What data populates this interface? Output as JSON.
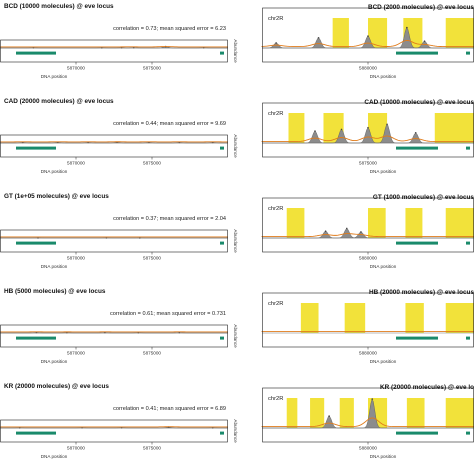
{
  "chart_data": [
    {
      "type": "area",
      "title": "BCD (10000 molecules) @ eve locus",
      "stats": "correlation = 0.73; mean squared error = 6.23",
      "xlabel": "DNA position",
      "ylabel": "Abundance",
      "xticks": [
        "5870000",
        "5875000"
      ],
      "xlim": [
        5865000,
        5880000
      ],
      "peaks": [
        {
          "x": 5867200,
          "y": 0.12
        },
        {
          "x": 5871700,
          "y": 0.1
        },
        {
          "x": 5873000,
          "y": 0.12
        },
        {
          "x": 5873800,
          "y": 0.18
        },
        {
          "x": 5875900,
          "y": 0.75
        },
        {
          "x": 5878400,
          "y": 0.15
        }
      ]
    },
    {
      "type": "area",
      "title": "BCD (2000 molecules) @ eve locus",
      "chrom": "chr2R",
      "xticks": [
        "5880000"
      ],
      "xlim": [
        5865000,
        5895000
      ],
      "peaks": [
        {
          "x": 5867000,
          "y": 0.15
        },
        {
          "x": 5873000,
          "y": 0.3
        },
        {
          "x": 5880000,
          "y": 0.35
        },
        {
          "x": 5885500,
          "y": 0.6
        },
        {
          "x": 5888000,
          "y": 0.2
        }
      ],
      "bands": [
        [
          5875000,
          5877300
        ],
        [
          5880000,
          5882700
        ],
        [
          5885000,
          5887700
        ],
        [
          5891000,
          5895000
        ]
      ]
    },
    {
      "type": "area",
      "title": "CAD (20000 molecules) @ eve locus",
      "stats": "correlation = 0.44; mean squared error = 9.69",
      "xlabel": "DNA position",
      "ylabel": "Abundance",
      "xticks": [
        "5870000",
        "5875000"
      ],
      "xlim": [
        5865000,
        5880000
      ],
      "peaks": [
        {
          "x": 5866500,
          "y": 0.3
        },
        {
          "x": 5868800,
          "y": 0.35
        },
        {
          "x": 5870800,
          "y": 0.3
        },
        {
          "x": 5872700,
          "y": 0.38
        },
        {
          "x": 5874800,
          "y": 0.32
        },
        {
          "x": 5876800,
          "y": 0.3
        },
        {
          "x": 5879000,
          "y": 0.3
        }
      ]
    },
    {
      "type": "area",
      "title": "CAD (10000 molecules) @ eve locus",
      "chrom": "chr2R",
      "xticks": [
        "5875000"
      ],
      "xlim": [
        5865000,
        5885000
      ],
      "peaks": [
        {
          "x": 5870000,
          "y": 0.35
        },
        {
          "x": 5872500,
          "y": 0.4
        },
        {
          "x": 5875000,
          "y": 0.45
        },
        {
          "x": 5876800,
          "y": 0.55
        },
        {
          "x": 5879500,
          "y": 0.3
        }
      ],
      "bands": [
        [
          5867500,
          5869000
        ],
        [
          5870800,
          5872700
        ],
        [
          5875000,
          5876800
        ],
        [
          5881300,
          5885000
        ]
      ]
    },
    {
      "type": "area",
      "title": "GT (1e+05 molecules) @ eve locus",
      "stats": "correlation = 0.37; mean squared error = 2.04",
      "xlabel": "DNA position",
      "ylabel": "Abundance",
      "xticks": [
        "5870000",
        "5875000"
      ],
      "xlim": [
        5865000,
        5880000
      ],
      "peaks": [
        {
          "x": 5867500,
          "y": 0.05
        },
        {
          "x": 5872000,
          "y": 0.06
        },
        {
          "x": 5874200,
          "y": 0.04
        }
      ]
    },
    {
      "type": "area",
      "title": "GT (1000 molecules) @ eve locus",
      "chrom": "chr2R",
      "xticks": [
        "5880000"
      ],
      "xlim": [
        5865000,
        5895000
      ],
      "peaks": [
        {
          "x": 5874000,
          "y": 0.2
        },
        {
          "x": 5877000,
          "y": 0.28
        },
        {
          "x": 5879000,
          "y": 0.18
        }
      ],
      "bands": [
        [
          5868500,
          5871000
        ],
        [
          5880000,
          5882500
        ],
        [
          5885300,
          5887700
        ],
        [
          5891000,
          5895000
        ]
      ]
    },
    {
      "type": "area",
      "title": "HB (5000 molecules) @ eve locus",
      "stats": "correlation = 0.61; mean squared error = 0.731",
      "xlabel": "DNA position",
      "ylabel": "Abundance",
      "xticks": [
        "5870000",
        "5875000"
      ],
      "xlim": [
        5865000,
        5880000
      ],
      "peaks": [
        {
          "x": 5867400,
          "y": 0.25
        },
        {
          "x": 5869400,
          "y": 0.18
        },
        {
          "x": 5871900,
          "y": 0.22
        },
        {
          "x": 5874100,
          "y": 0.15
        },
        {
          "x": 5876800,
          "y": 0.2
        }
      ]
    },
    {
      "type": "area",
      "title": "HB (20000 molecules) @ eve locus",
      "chrom": "chr2R",
      "xticks": [
        "5880000"
      ],
      "xlim": [
        5865000,
        5895000
      ],
      "peaks": [],
      "bands": [
        [
          5870500,
          5873000
        ],
        [
          5876700,
          5879600
        ],
        [
          5885300,
          5887900
        ],
        [
          5891000,
          5895000
        ]
      ]
    },
    {
      "type": "area",
      "title": "KR (20000 molecules) @ eve locus",
      "stats": "correlation = 0.41; mean squared error = 6.89",
      "xlabel": "DNA position",
      "ylabel": "Abundance",
      "xticks": [
        "5870000",
        "5875000"
      ],
      "xlim": [
        5865000,
        5880000
      ],
      "peaks": [
        {
          "x": 5866300,
          "y": 0.1
        },
        {
          "x": 5870400,
          "y": 0.12
        },
        {
          "x": 5873000,
          "y": 0.14
        },
        {
          "x": 5876100,
          "y": 0.45
        },
        {
          "x": 5879000,
          "y": 0.1
        }
      ]
    },
    {
      "type": "area",
      "title": "KR (20000 molecules) @ eve lo",
      "chrom": "chr2R",
      "xticks": [
        "5880000"
      ],
      "xlim": [
        5865000,
        5895000
      ],
      "peaks": [
        {
          "x": 5874500,
          "y": 0.35
        },
        {
          "x": 5880600,
          "y": 0.85
        }
      ],
      "bands": [
        [
          5868500,
          5870000
        ],
        [
          5871800,
          5873800
        ],
        [
          5876000,
          5878000
        ],
        [
          5880000,
          5882700
        ],
        [
          5885500,
          5888000
        ],
        [
          5891000,
          5895000
        ]
      ]
    }
  ],
  "colors": {
    "fill": "#8c8c8c",
    "line": "#e07b1a",
    "band": "#f2e23a",
    "gene": "#1a8a6b",
    "highlight": "#3aa0d8"
  }
}
